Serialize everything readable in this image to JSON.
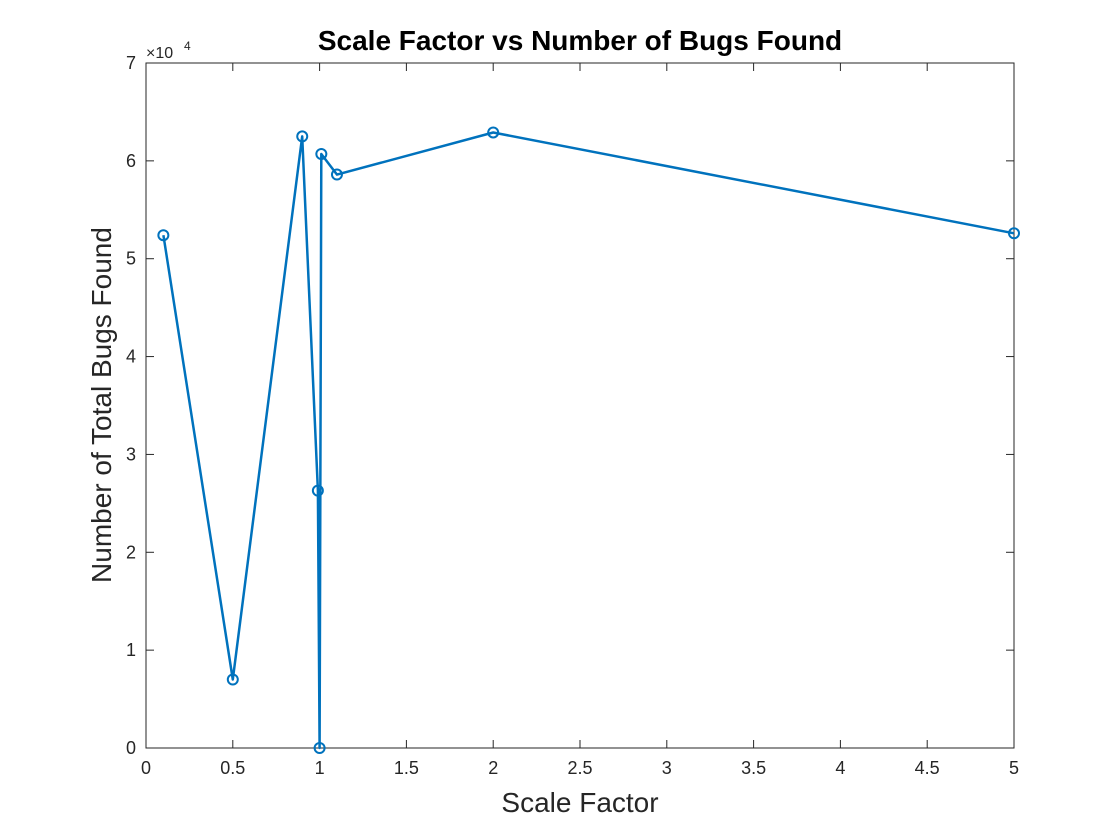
{
  "chart_data": {
    "type": "line",
    "title": "Scale Factor vs Number of Bugs Found",
    "xlabel": "Scale Factor",
    "ylabel": "Number of Total Bugs Found",
    "xlim": [
      0,
      5
    ],
    "ylim": [
      0,
      70000
    ],
    "y_exponent_label": "×10",
    "y_exponent_power": "4",
    "xticks": [
      0,
      0.5,
      1,
      1.5,
      2,
      2.5,
      3,
      3.5,
      4,
      4.5,
      5
    ],
    "xtick_labels": [
      "0",
      "0.5",
      "1",
      "1.5",
      "2",
      "2.5",
      "3",
      "3.5",
      "4",
      "4.5",
      "5"
    ],
    "yticks": [
      0,
      10000,
      20000,
      30000,
      40000,
      50000,
      60000,
      70000
    ],
    "ytick_labels": [
      "0",
      "1",
      "2",
      "3",
      "4",
      "5",
      "6",
      "7"
    ],
    "grid": false,
    "marker": "circle",
    "color": "#0072BD",
    "series": [
      {
        "x": [
          0.1,
          0.5,
          0.9,
          0.99,
          1.0,
          1.01,
          1.1,
          2.0,
          5.0
        ],
        "y": [
          52400,
          7000,
          62500,
          26300,
          0,
          60700,
          58600,
          62900,
          52600
        ]
      }
    ]
  }
}
